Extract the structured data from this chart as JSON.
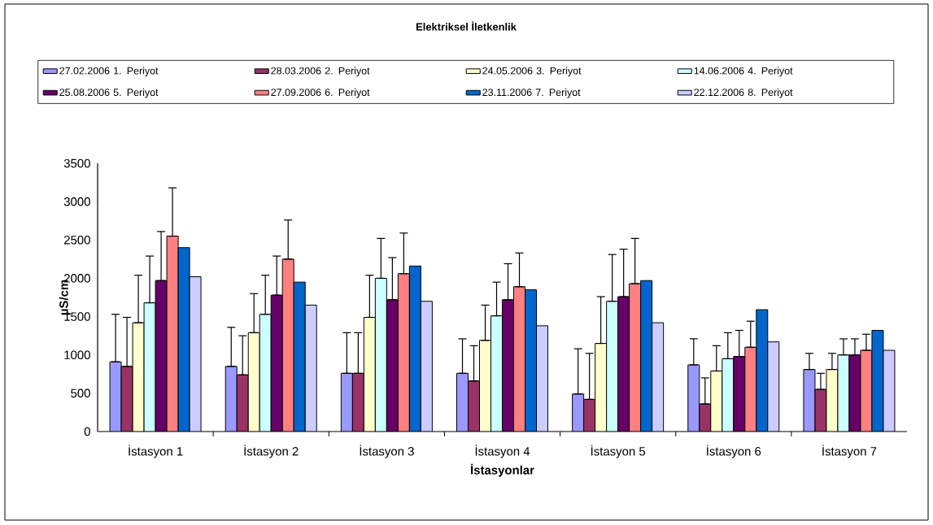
{
  "chart_data": {
    "type": "bar",
    "title": "Elektriksel İletkenlik",
    "xlabel": "İstasyonlar",
    "ylabel": "µS/cm",
    "categories": [
      "İstasyon 1",
      "İstasyon 2",
      "İstasyon 3",
      "İstasyon 4",
      "İstasyon 5",
      "İstasyon 6",
      "İstasyon 7"
    ],
    "series": [
      {
        "name": "27.02.2006 1. Periyot",
        "color": "#9999ff",
        "values": [
          910,
          850,
          760,
          760,
          490,
          870,
          810
        ],
        "errors": [
          [
            910,
            1530
          ],
          [
            850,
            1360
          ],
          [
            760,
            1290
          ],
          [
            760,
            1210
          ],
          [
            490,
            1080
          ],
          [
            870,
            1210
          ],
          [
            810,
            1020
          ]
        ]
      },
      {
        "name": "28.03.2006 2. Periyot",
        "color": "#993366",
        "values": [
          850,
          740,
          760,
          660,
          420,
          360,
          550
        ],
        "errors": [
          [
            850,
            1490
          ],
          [
            740,
            1250
          ],
          [
            760,
            1290
          ],
          [
            660,
            1120
          ],
          [
            420,
            1020
          ],
          [
            360,
            700
          ],
          [
            550,
            760
          ]
        ]
      },
      {
        "name": "24.05.2006 3. Periyot",
        "color": "#ffffcc",
        "values": [
          1420,
          1290,
          1490,
          1190,
          1150,
          790,
          810
        ],
        "errors": [
          [
            1420,
            2040
          ],
          [
            1290,
            1800
          ],
          [
            1490,
            2040
          ],
          [
            1190,
            1650
          ],
          [
            1150,
            1760
          ],
          [
            790,
            1120
          ],
          [
            810,
            1020
          ]
        ]
      },
      {
        "name": "14.06.2006 4. Periyot",
        "color": "#ccffff",
        "values": [
          1680,
          1530,
          2000,
          1510,
          1700,
          950,
          1000
        ],
        "errors": [
          [
            1680,
            2290
          ],
          [
            1530,
            2040
          ],
          [
            2000,
            2520
          ],
          [
            1510,
            1950
          ],
          [
            1700,
            2310
          ],
          [
            950,
            1290
          ],
          [
            1000,
            1210
          ]
        ]
      },
      {
        "name": "25.08.2006 5. Periyot",
        "color": "#660066",
        "values": [
          1970,
          1780,
          1720,
          1720,
          1760,
          980,
          1000
        ],
        "errors": [
          [
            1970,
            2610
          ],
          [
            1780,
            2290
          ],
          [
            1720,
            2270
          ],
          [
            1720,
            2190
          ],
          [
            1760,
            2380
          ],
          [
            980,
            1320
          ],
          [
            1000,
            1210
          ]
        ]
      },
      {
        "name": "27.09.2006 6. Periyot",
        "color": "#ff8080",
        "values": [
          2550,
          2250,
          2060,
          1890,
          1930,
          1100,
          1060
        ],
        "errors": [
          [
            2550,
            3180
          ],
          [
            2250,
            2760
          ],
          [
            2060,
            2590
          ],
          [
            1890,
            2330
          ],
          [
            1930,
            2520
          ],
          [
            1100,
            1440
          ],
          [
            1060,
            1270
          ]
        ]
      },
      {
        "name": "23.11.2006 7. Periyot",
        "color": "#0066cc",
        "values": [
          2400,
          1950,
          2160,
          1850,
          1970,
          1590,
          1320
        ]
      },
      {
        "name": "22.12.2006 8. Periyot",
        "color": "#ccccff",
        "values": [
          2020,
          1650,
          1700,
          1380,
          1420,
          1170,
          1060
        ]
      }
    ],
    "ylim": [
      0,
      3500
    ],
    "yticks": [
      0,
      500,
      1000,
      1500,
      2000,
      2500,
      3000,
      3500
    ],
    "legend": "top"
  }
}
